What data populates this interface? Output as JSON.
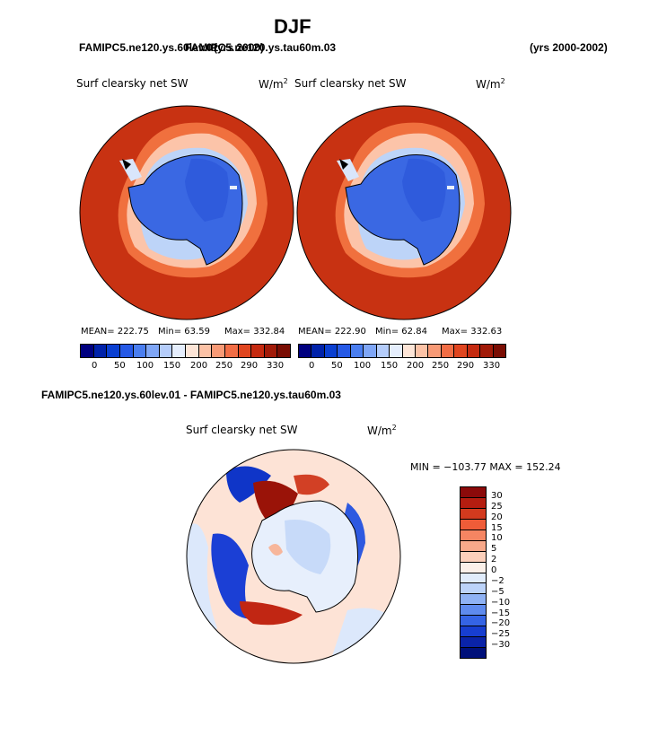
{
  "title": "DJF",
  "header": {
    "left": "FAMIPC5.ne120.ys.60lev.01",
    "overlap": "FAMIPC5.ne120.ys.tau60m.03",
    "mid_years": "(yrs 2000)",
    "right_years": "(yrs 2000-2002)"
  },
  "panel_left": {
    "var": "Surf clearsky net SW",
    "units_base": "W/m",
    "units_exp": "2",
    "mean": "MEAN= 222.75",
    "min": "Min=  63.59",
    "max": "Max= 332.84"
  },
  "panel_right": {
    "var": "Surf clearsky net SW",
    "units_base": "W/m",
    "units_exp": "2",
    "mean": "MEAN= 222.90",
    "min": "Min=  62.84",
    "max": "Max= 332.63"
  },
  "top_colorbar": {
    "labels": [
      "0",
      "50",
      "100",
      "150",
      "200",
      "250",
      "290",
      "330"
    ],
    "colors": [
      "#00007f",
      "#0022aa",
      "#0a3fd1",
      "#2659e6",
      "#4a7ef0",
      "#7fa6f6",
      "#b4ccfa",
      "#e5eefd",
      "#fde5d7",
      "#fcc2a6",
      "#f89a76",
      "#f26d45",
      "#e0451f",
      "#c52a10",
      "#a11a08",
      "#7a0d03"
    ]
  },
  "diff": {
    "header": "FAMIPC5.ne120.ys.60lev.01 - FAMIPC5.ne120.ys.tau60m.03",
    "var": "Surf clearsky net SW",
    "units_base": "W/m",
    "units_exp": "2",
    "minmax": "MIN = −103.77 MAX = 152.24",
    "colorbar_labels": [
      "30",
      "25",
      "20",
      "15",
      "10",
      "5",
      "2",
      "0",
      "−2",
      "−5",
      "−10",
      "−15",
      "−20",
      "−25",
      "−30"
    ],
    "colorbar_colors": [
      "#8b0a0a",
      "#b41d10",
      "#d33a1e",
      "#ef5c38",
      "#f58562",
      "#f8a98a",
      "#fcd0bb",
      "#fbf0e9",
      "#e1ecfb",
      "#bcd3f9",
      "#8fb2f4",
      "#5f8bee",
      "#3564e5",
      "#173ed0",
      "#0a23a8",
      "#00107a"
    ]
  }
}
